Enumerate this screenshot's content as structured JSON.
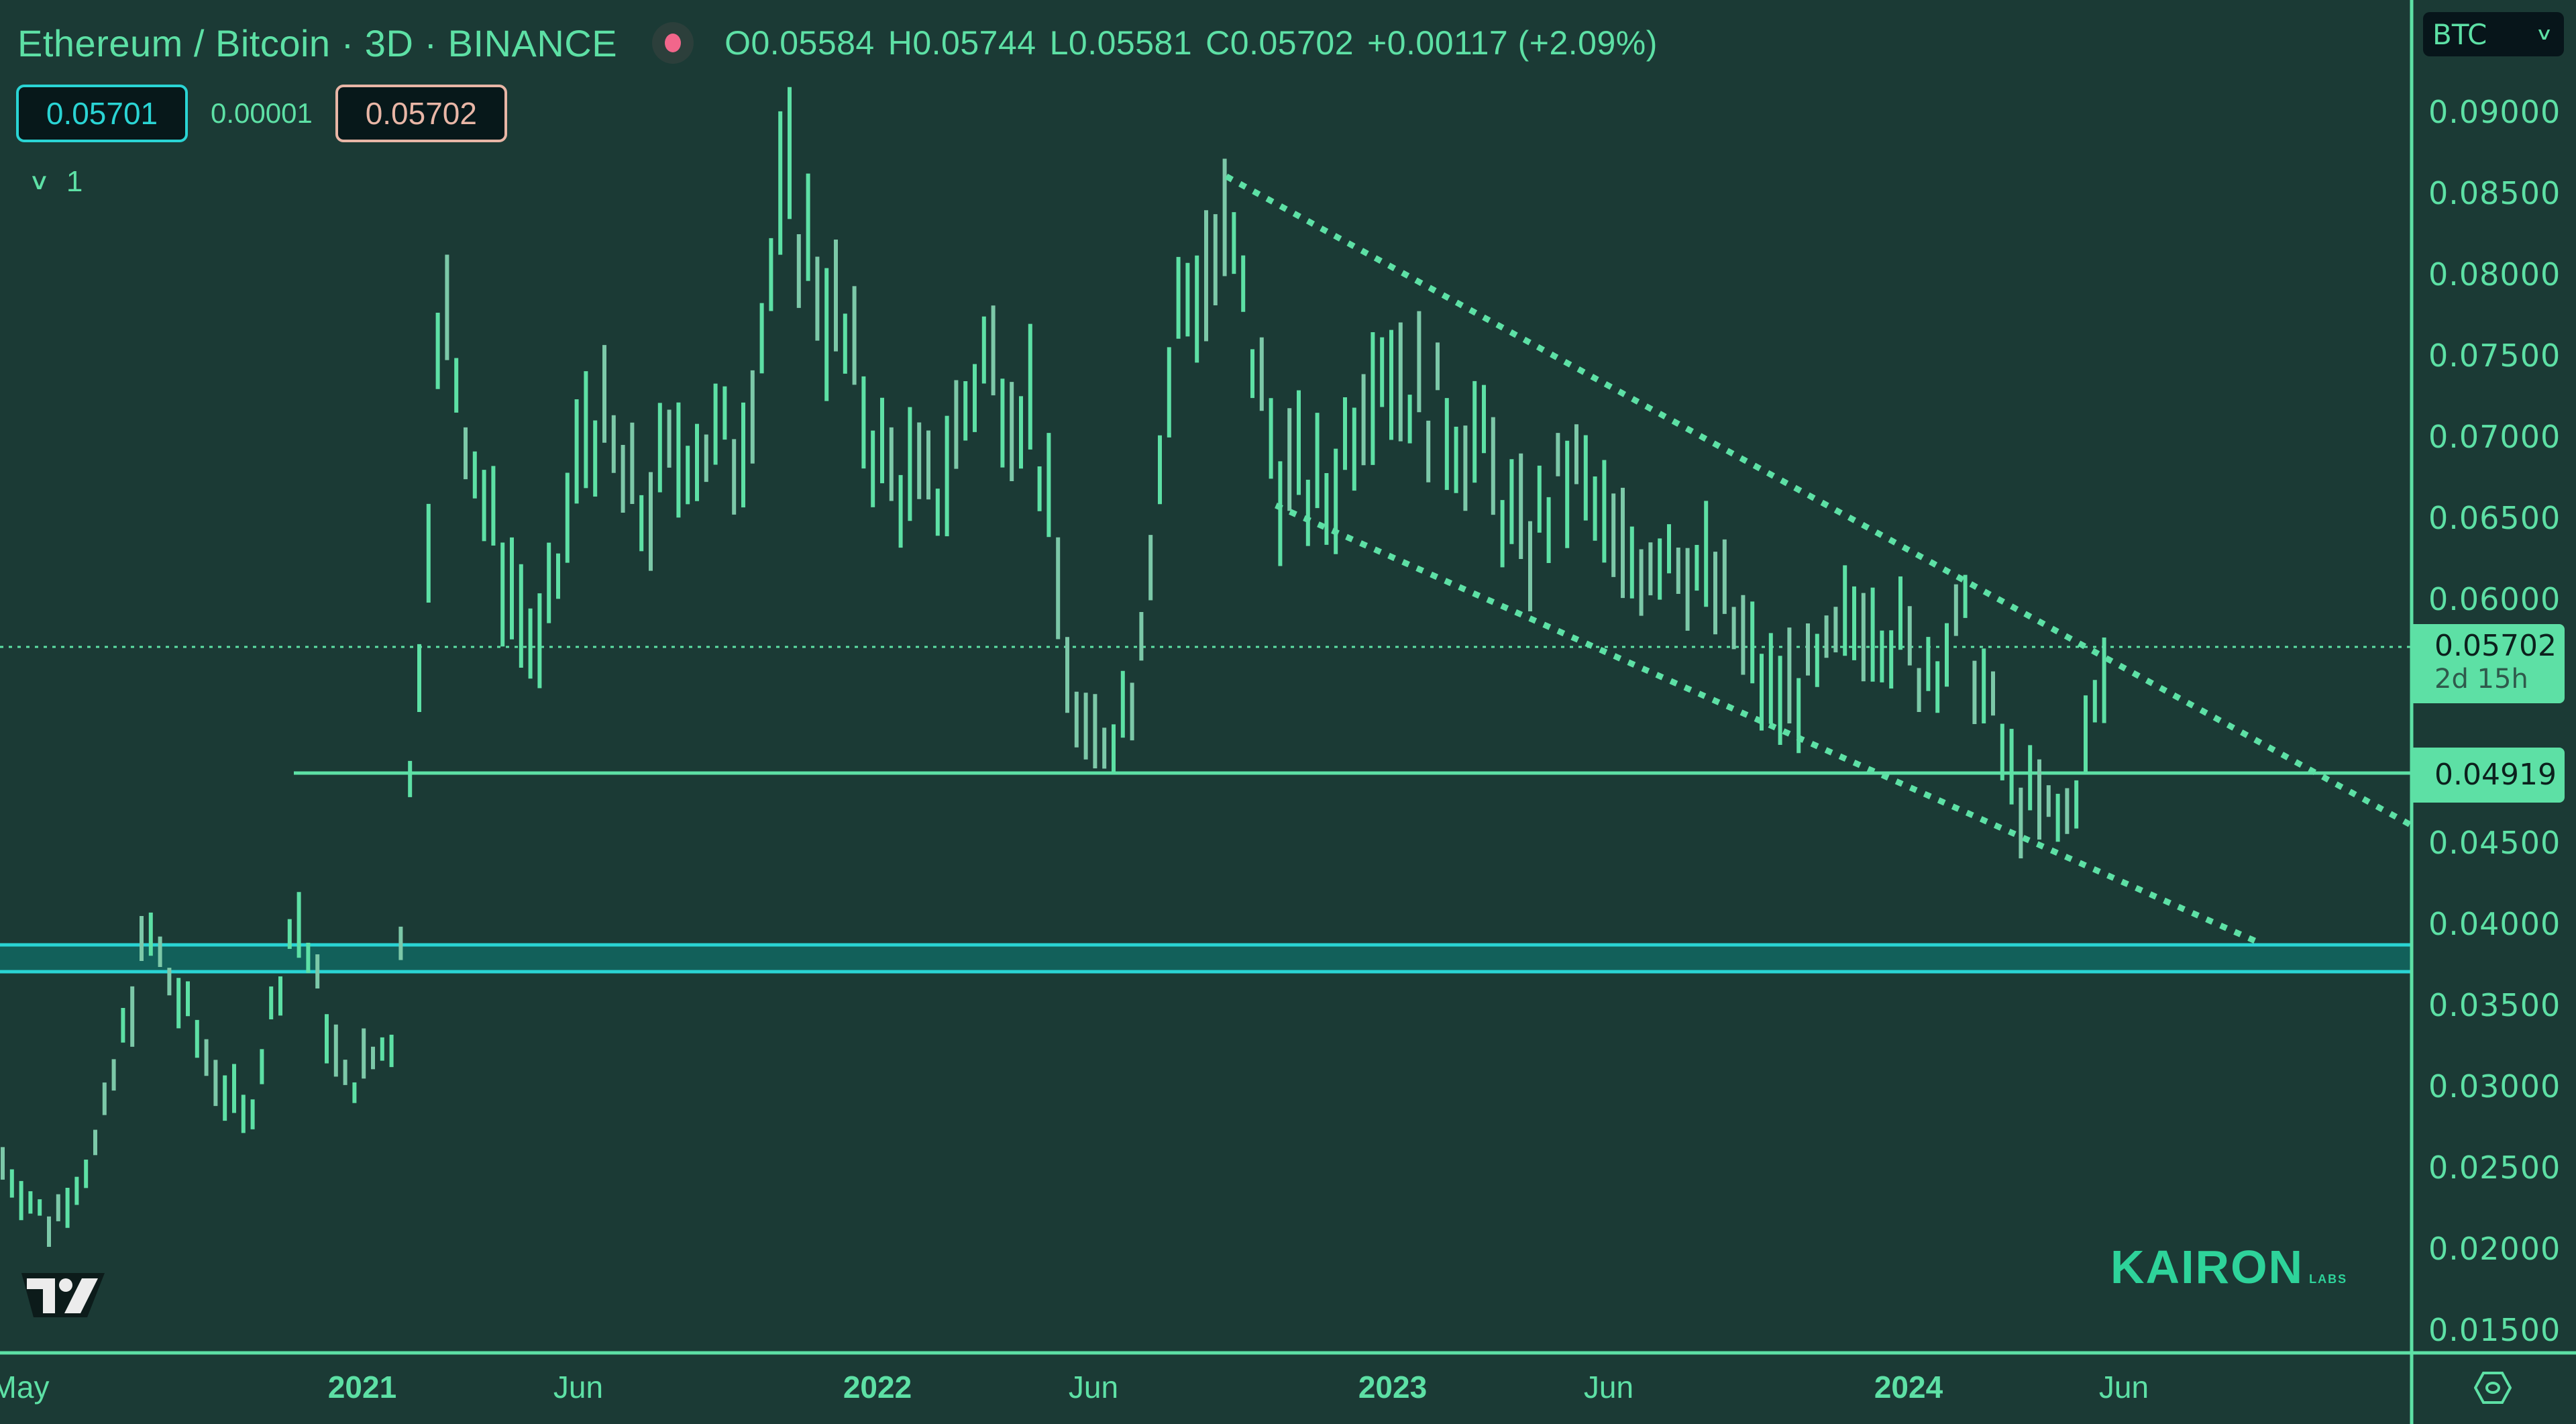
{
  "header": {
    "title": "Ethereum / Bitcoin · 3D · BINANCE",
    "live_indicator_color": "#f2668b",
    "ohlc": {
      "open": "O0.05584",
      "high": "H0.05744",
      "low": "L0.05581",
      "close": "C0.05702",
      "change": "+0.00117 (+2.09%)"
    }
  },
  "pricebar": {
    "bid": "0.05701",
    "spread": "0.00001",
    "ask": "0.05702"
  },
  "layers": {
    "toggle_icon": "chevron-down-icon",
    "count": "1"
  },
  "currency_select": {
    "value": "BTC"
  },
  "price_tags": {
    "last_price": "0.05702",
    "countdown": "2d 15h",
    "level": "0.04919"
  },
  "brand": {
    "name": "KAIRON",
    "sub": "LABS"
  },
  "colors": {
    "background": "#1b3a35",
    "accent": "#5de0a5",
    "band": "#2ad4d4",
    "bid": "#2ad4d4",
    "ask": "#e8b6a6"
  },
  "chart_data": {
    "type": "ohlc",
    "title": "Ethereum / Bitcoin · 3D · BINANCE",
    "timeframe": "3D",
    "xlabel": "",
    "ylabel": "BTC",
    "x_ticks": [
      "May",
      "2021",
      "Jun",
      "2022",
      "Jun",
      "2023",
      "Jun",
      "2024",
      "Jun"
    ],
    "y_ticks": [
      "0.09000",
      "0.08500",
      "0.08000",
      "0.07500",
      "0.07000",
      "0.06500",
      "0.06000",
      "0.04500",
      "0.04000",
      "0.03500",
      "0.03000",
      "0.02500",
      "0.02000",
      "0.01500"
    ],
    "ylim": [
      0.0135,
      0.0925
    ],
    "grid": false,
    "legend": "none",
    "price_path_approx": {
      "dates": [
        "2020-05",
        "2020-06",
        "2020-08",
        "2020-09",
        "2020-11",
        "2021-01",
        "2021-02",
        "2021-03",
        "2021-04",
        "2021-05",
        "2021-06",
        "2021-07",
        "2021-08",
        "2021-09",
        "2021-10",
        "2021-11",
        "2021-12",
        "2022-01",
        "2022-02",
        "2022-03",
        "2022-04",
        "2022-05",
        "2022-06",
        "2022-07",
        "2022-08",
        "2022-09",
        "2022-10",
        "2022-11",
        "2022-12",
        "2023-01",
        "2023-02",
        "2023-04",
        "2023-05",
        "2023-07",
        "2023-08",
        "2023-09",
        "2023-10",
        "2023-12",
        "2024-01",
        "2024-02",
        "2024-03",
        "2024-04",
        "2024-05",
        "2024-05-20"
      ],
      "values": [
        0.0255,
        0.0215,
        0.0265,
        0.0395,
        0.033,
        0.0275,
        0.041,
        0.03,
        0.033,
        0.078,
        0.064,
        0.056,
        0.072,
        0.065,
        0.07,
        0.069,
        0.085,
        0.077,
        0.068,
        0.066,
        0.075,
        0.072,
        0.05,
        0.054,
        0.078,
        0.082,
        0.068,
        0.066,
        0.076,
        0.072,
        0.07,
        0.063,
        0.068,
        0.062,
        0.064,
        0.06,
        0.054,
        0.055,
        0.06,
        0.056,
        0.058,
        0.048,
        0.046,
        0.057
      ]
    },
    "annotations": [
      {
        "type": "horizontal_line",
        "price": 0.04919,
        "label": "0.04919"
      },
      {
        "type": "horizontal_band",
        "from": 0.0372,
        "to": 0.0385,
        "color": "#2ad4d4"
      },
      {
        "type": "dotted_trendline",
        "name": "channel-upper",
        "from": [
          "2022-08",
          0.0855
        ],
        "to": [
          "2024-09",
          0.0462
        ]
      },
      {
        "type": "dotted_trendline",
        "name": "channel-lower",
        "from": [
          "2022-10",
          0.0655
        ],
        "to": [
          "2024-08",
          0.0386
        ]
      },
      {
        "type": "last_price_line",
        "price": 0.05702,
        "style": "dotted"
      }
    ]
  }
}
